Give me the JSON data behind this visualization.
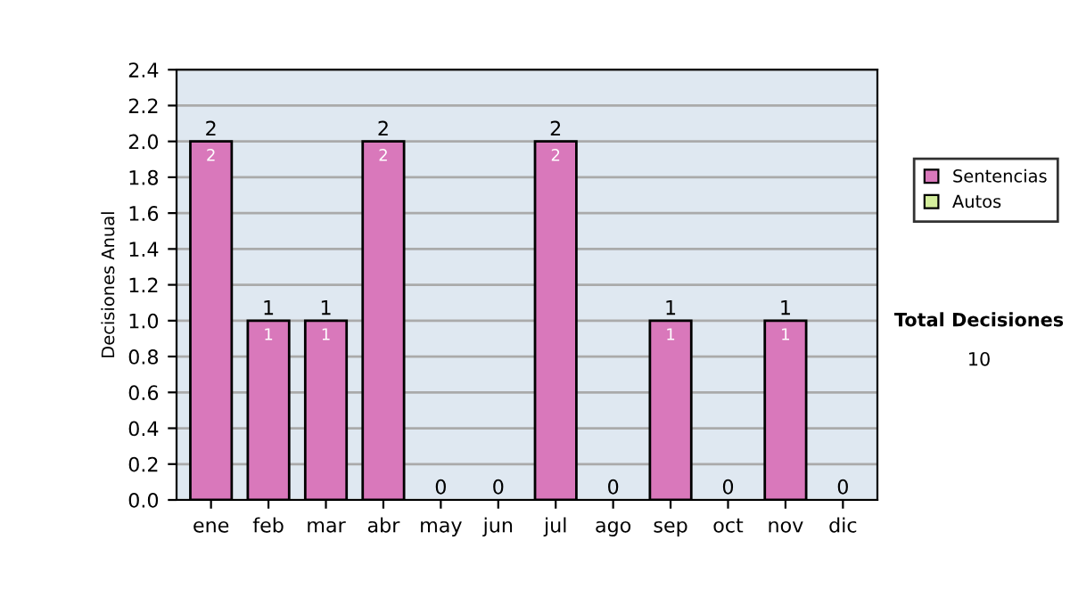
{
  "chart_data": {
    "type": "bar",
    "ylabel": "Decisiones Anual",
    "categories": [
      "ene",
      "feb",
      "mar",
      "abr",
      "may",
      "jun",
      "jul",
      "ago",
      "sep",
      "oct",
      "nov",
      "dic"
    ],
    "stacked": true,
    "series": [
      {
        "name": "Sentencias",
        "color": "#d978bb",
        "values": [
          2,
          1,
          1,
          2,
          0,
          0,
          2,
          0,
          1,
          0,
          1,
          0
        ],
        "value_labels": [
          "2",
          "1",
          "1",
          "2",
          null,
          null,
          "2",
          null,
          "1",
          null,
          "1",
          null
        ]
      },
      {
        "name": "Autos",
        "color": "#d4ee9c",
        "values": [
          0,
          0,
          0,
          0,
          0,
          0,
          0,
          0,
          0,
          0,
          0,
          0
        ]
      }
    ],
    "totals": [
      "2",
      "1",
      "1",
      "2",
      "0",
      "0",
      "2",
      "0",
      "1",
      "0",
      "1",
      "0"
    ],
    "ylim": [
      0,
      2.4
    ],
    "yticks": [
      {
        "value": 0,
        "label": "0.0"
      },
      0.2,
      0.4,
      0.6,
      0.8,
      {
        "value": 1,
        "label": "1.0"
      },
      1.2,
      1.4,
      1.6,
      1.8,
      {
        "value": 2,
        "label": "2.0"
      },
      2.2,
      2.4
    ],
    "grid": "y",
    "legend": "right",
    "annotations": [
      "Total Decisiones",
      "10"
    ]
  }
}
